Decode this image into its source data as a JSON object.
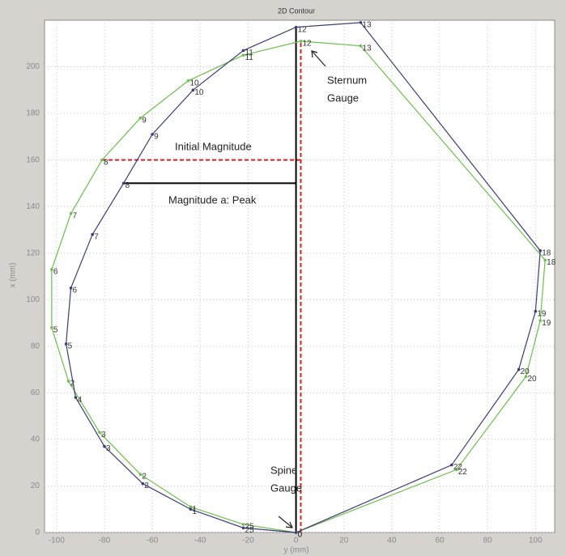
{
  "chart_data": {
    "type": "line",
    "title": "2D Contour",
    "xlabel": "y (mm)",
    "ylabel": "x (mm)",
    "xlim": [
      -105,
      108
    ],
    "ylim": [
      0,
      220
    ],
    "xticks": [
      -100,
      -80,
      -60,
      -40,
      -20,
      0,
      20,
      40,
      60,
      80,
      100
    ],
    "yticks": [
      0,
      20,
      40,
      60,
      80,
      100,
      120,
      140,
      160,
      180,
      200
    ],
    "grid": true,
    "series": [
      {
        "color": "#6cbf4c",
        "labels": [
          "0",
          "25",
          "1",
          "2",
          "3",
          "2",
          "5",
          "6",
          "7",
          "8",
          "9",
          "10",
          "11",
          "12",
          "13",
          "18",
          "19",
          "20",
          "22"
        ],
        "x": [
          0,
          -22,
          -44,
          -65,
          -82,
          -95,
          -102,
          -102,
          -94,
          -81,
          -65,
          -45,
          -22,
          2,
          27,
          104,
          102,
          96,
          67
        ],
        "values": [
          0,
          3.5,
          11,
          25,
          43,
          65,
          88,
          113,
          137,
          160,
          178,
          194,
          205,
          211,
          209,
          117,
          91,
          67,
          27
        ]
      },
      {
        "color": "#3c3c78",
        "labels": [
          "0",
          "25",
          "1",
          "2",
          "3",
          "4",
          "5",
          "6",
          "7",
          "8",
          "9",
          "10",
          "11",
          "12",
          "13",
          "18",
          "19",
          "20",
          "22"
        ],
        "x": [
          0,
          -22,
          -44,
          -64,
          -80,
          -92,
          -96,
          -94,
          -85,
          -72,
          -60,
          -43,
          -22,
          0,
          27,
          102,
          100,
          93,
          65
        ],
        "values": [
          0,
          2,
          10,
          21,
          37,
          58,
          81,
          105,
          128,
          150,
          171,
          190,
          207,
          217,
          219,
          121,
          95,
          70,
          29
        ]
      }
    ],
    "ref_lines": [
      {
        "color": "#e02020",
        "dashed": true,
        "x": [
          -81,
          2
        ],
        "y": [
          160,
          160
        ]
      },
      {
        "color": "#e02020",
        "dashed": true,
        "x": [
          2,
          2
        ],
        "y": [
          0,
          211
        ]
      },
      {
        "color": "#000000",
        "dashed": false,
        "x": [
          -72,
          0
        ],
        "y": [
          150,
          150
        ]
      },
      {
        "color": "#000000",
        "dashed": false,
        "x": [
          0,
          0
        ],
        "y": [
          0,
          217
        ]
      }
    ],
    "annotations": [
      {
        "lines": [
          "Initial Magnitude"
        ]
      },
      {
        "lines": [
          "Magnitude a: Peak"
        ]
      },
      {
        "lines": [
          "Sternum",
          "Gauge"
        ]
      },
      {
        "lines": [
          "Spine",
          "Gauge"
        ]
      }
    ]
  }
}
